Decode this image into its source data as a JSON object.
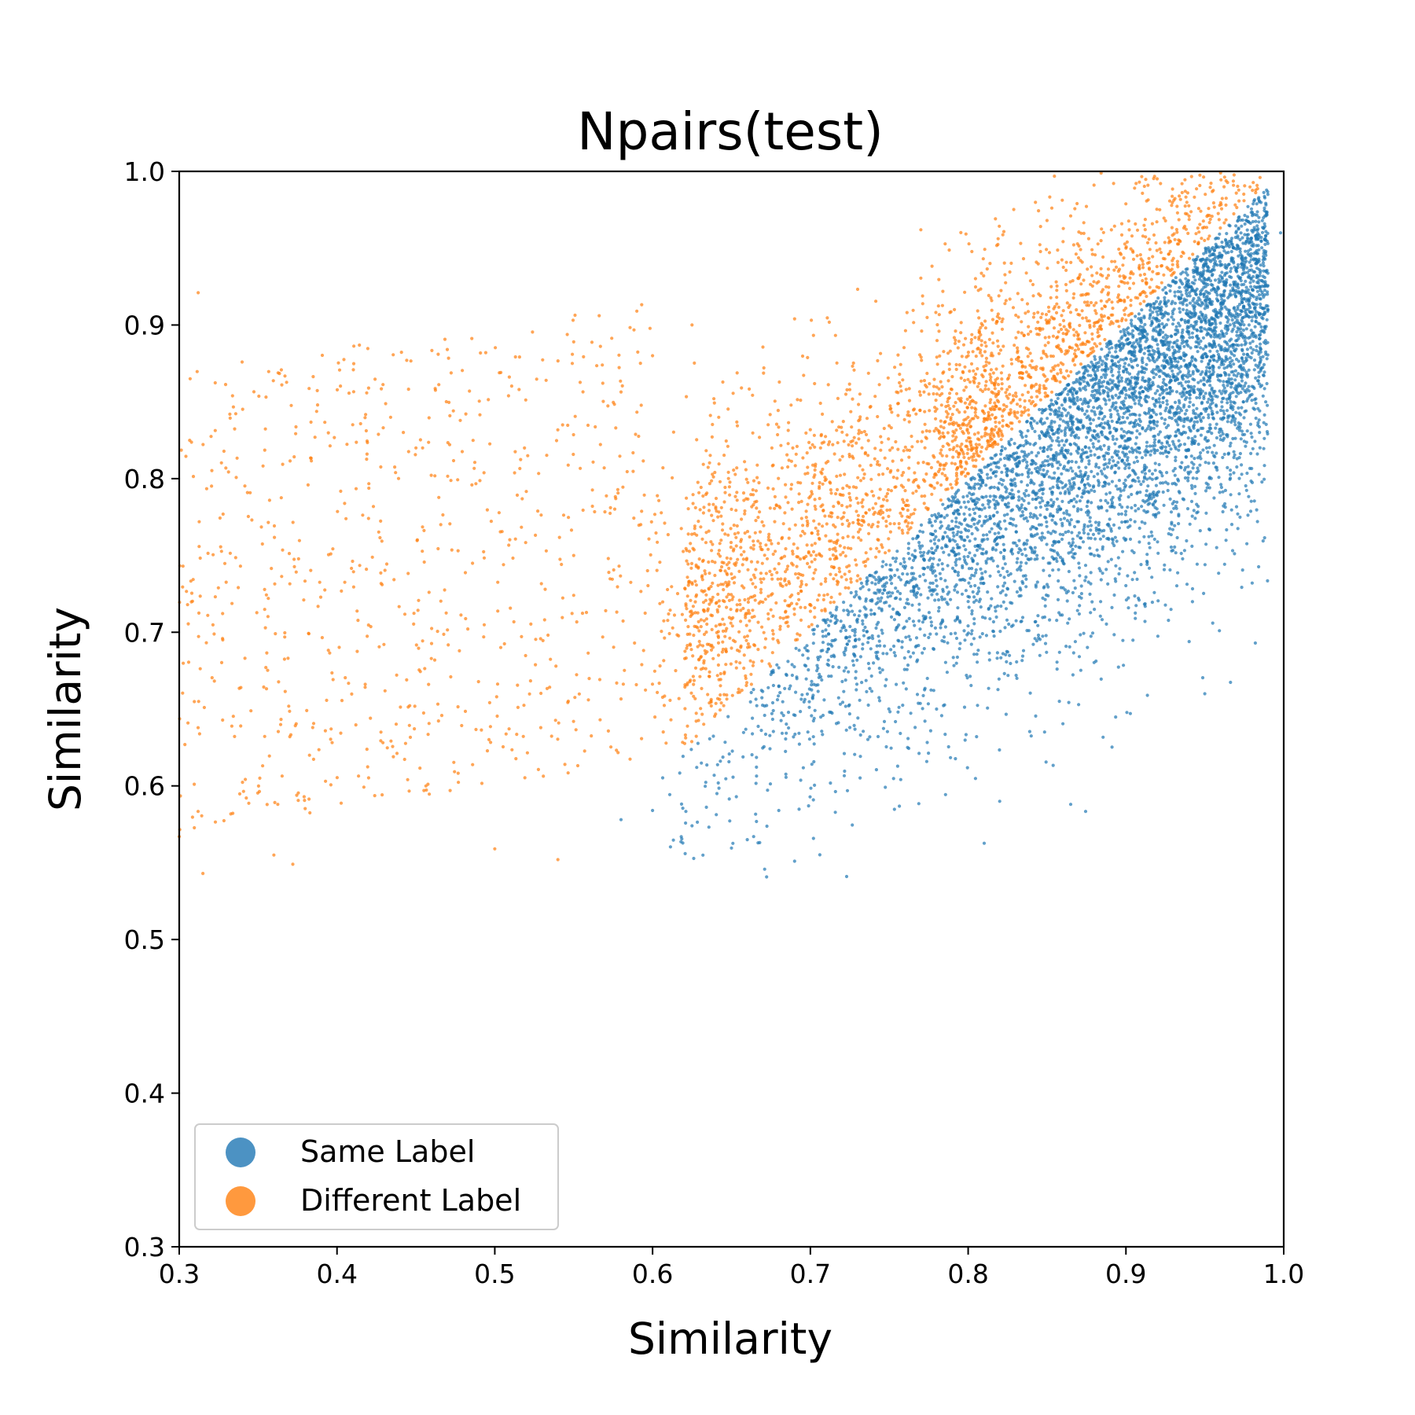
{
  "chart_data": {
    "type": "scatter",
    "title": "Npairs(test)",
    "xlabel": "Similarity",
    "ylabel": "Similarity",
    "xlim": [
      0.3,
      1.0
    ],
    "ylim": [
      0.3,
      1.0
    ],
    "x_ticks": [
      "0.3",
      "0.4",
      "0.5",
      "0.6",
      "0.7",
      "0.8",
      "0.9",
      "1.0"
    ],
    "y_ticks": [
      "0.3",
      "0.4",
      "0.5",
      "0.6",
      "0.7",
      "0.8",
      "0.9",
      "1.0"
    ],
    "grid": false,
    "legend_position": "lower-left",
    "series": [
      {
        "name": "Same Label",
        "color": "#1f77b4",
        "distribution": "below-diagonal",
        "point_count": 5200,
        "x_range": [
          0.58,
          1.0
        ],
        "y_range": [
          0.54,
          0.99
        ],
        "points": [
          [
            0.58,
            0.578
          ],
          [
            0.6,
            0.584
          ],
          [
            0.625,
            0.574
          ],
          [
            0.66,
            0.565
          ],
          [
            0.69,
            0.551
          ],
          [
            0.723,
            0.541
          ],
          [
            0.68,
            0.584
          ],
          [
            0.82,
            0.59
          ],
          [
            0.865,
            0.588
          ],
          [
            0.95,
            0.66
          ],
          [
            0.955,
            0.706
          ],
          [
            0.982,
            0.693
          ],
          [
            0.98,
            0.732
          ],
          [
            0.98,
            0.86
          ],
          [
            0.99,
            0.91
          ],
          [
            0.998,
            0.96
          ],
          [
            0.99,
            0.985
          ],
          [
            0.74,
            0.68
          ],
          [
            0.8,
            0.72
          ],
          [
            0.85,
            0.78
          ],
          [
            0.9,
            0.82
          ],
          [
            0.93,
            0.88
          ],
          [
            0.95,
            0.93
          ],
          [
            0.88,
            0.75
          ],
          [
            0.78,
            0.65
          ]
        ]
      },
      {
        "name": "Different Label",
        "color": "#ff7f0e",
        "distribution": "above-diagonal",
        "point_count": 3200,
        "x_range": [
          0.3,
          0.99
        ],
        "y_range": [
          0.543,
          1.0
        ],
        "points": [
          [
            0.312,
            0.921
          ],
          [
            0.3,
            0.567
          ],
          [
            0.315,
            0.543
          ],
          [
            0.36,
            0.555
          ],
          [
            0.372,
            0.549
          ],
          [
            0.365,
            0.861
          ],
          [
            0.42,
            0.859
          ],
          [
            0.55,
            0.889
          ],
          [
            0.59,
            0.909
          ],
          [
            0.6,
            0.88
          ],
          [
            0.625,
            0.9
          ],
          [
            0.69,
            0.904
          ],
          [
            0.77,
            0.962
          ],
          [
            0.85,
            0.968
          ],
          [
            0.865,
            0.971
          ],
          [
            0.96,
            0.999
          ],
          [
            0.985,
            0.996
          ],
          [
            0.5,
            0.559
          ],
          [
            0.54,
            0.552
          ],
          [
            0.45,
            0.82
          ],
          [
            0.55,
            0.75
          ],
          [
            0.65,
            0.78
          ],
          [
            0.7,
            0.82
          ],
          [
            0.8,
            0.88
          ],
          [
            0.9,
            0.95
          ]
        ]
      }
    ]
  }
}
